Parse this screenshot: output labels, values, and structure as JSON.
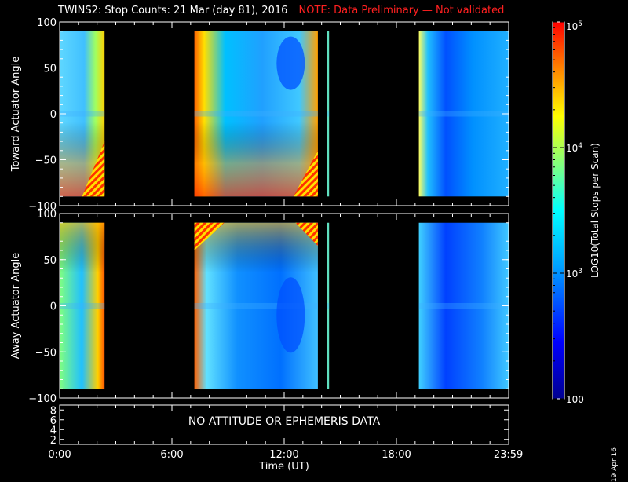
{
  "title": {
    "main": "TWINS2: Stop Counts: 21 Mar (day  81), 2016",
    "note": "NOTE: Data Preliminary — Not validated"
  },
  "panels": [
    {
      "ylabel": "Toward Actuator Angle",
      "yticks": [
        "100",
        "50",
        "0",
        "−50",
        "−100"
      ]
    },
    {
      "ylabel": "Away Actuator Angle",
      "yticks": [
        "100",
        "50",
        "0",
        "−50",
        "−100"
      ]
    }
  ],
  "attitude_panel": {
    "message": "NO ATTITUDE OR EPHEMERIS DATA",
    "yticks": [
      "8",
      "6",
      "4",
      "2"
    ]
  },
  "xaxis": {
    "label": "Time (UT)",
    "ticks": [
      "0:00",
      "6:00",
      "12:00",
      "18:00",
      "23:59"
    ]
  },
  "colorbar": {
    "label": "LOG10(Total Stops per Scan)",
    "ticks": [
      "10^5",
      "10^4",
      "10^3",
      "100"
    ]
  },
  "date_stamp": "19 Apr 16",
  "chart_data": {
    "type": "heatmap",
    "x_unit": "hours UT",
    "xlim": [
      0,
      24
    ],
    "ylim": [
      -100,
      100
    ],
    "y_data_range": [
      -90,
      90
    ],
    "color_scale": "log",
    "zlim": [
      100,
      100000
    ],
    "data_intervals_hours": [
      [
        0,
        2.4
      ],
      [
        7.2,
        13.8
      ],
      [
        14.3,
        14.4
      ],
      [
        19.2,
        24
      ]
    ],
    "panels": [
      "Toward Actuator Angle",
      "Away Actuator Angle"
    ]
  },
  "colors": {
    "background": "#000000",
    "axis": "#ffffff",
    "note": "#ff2020"
  }
}
